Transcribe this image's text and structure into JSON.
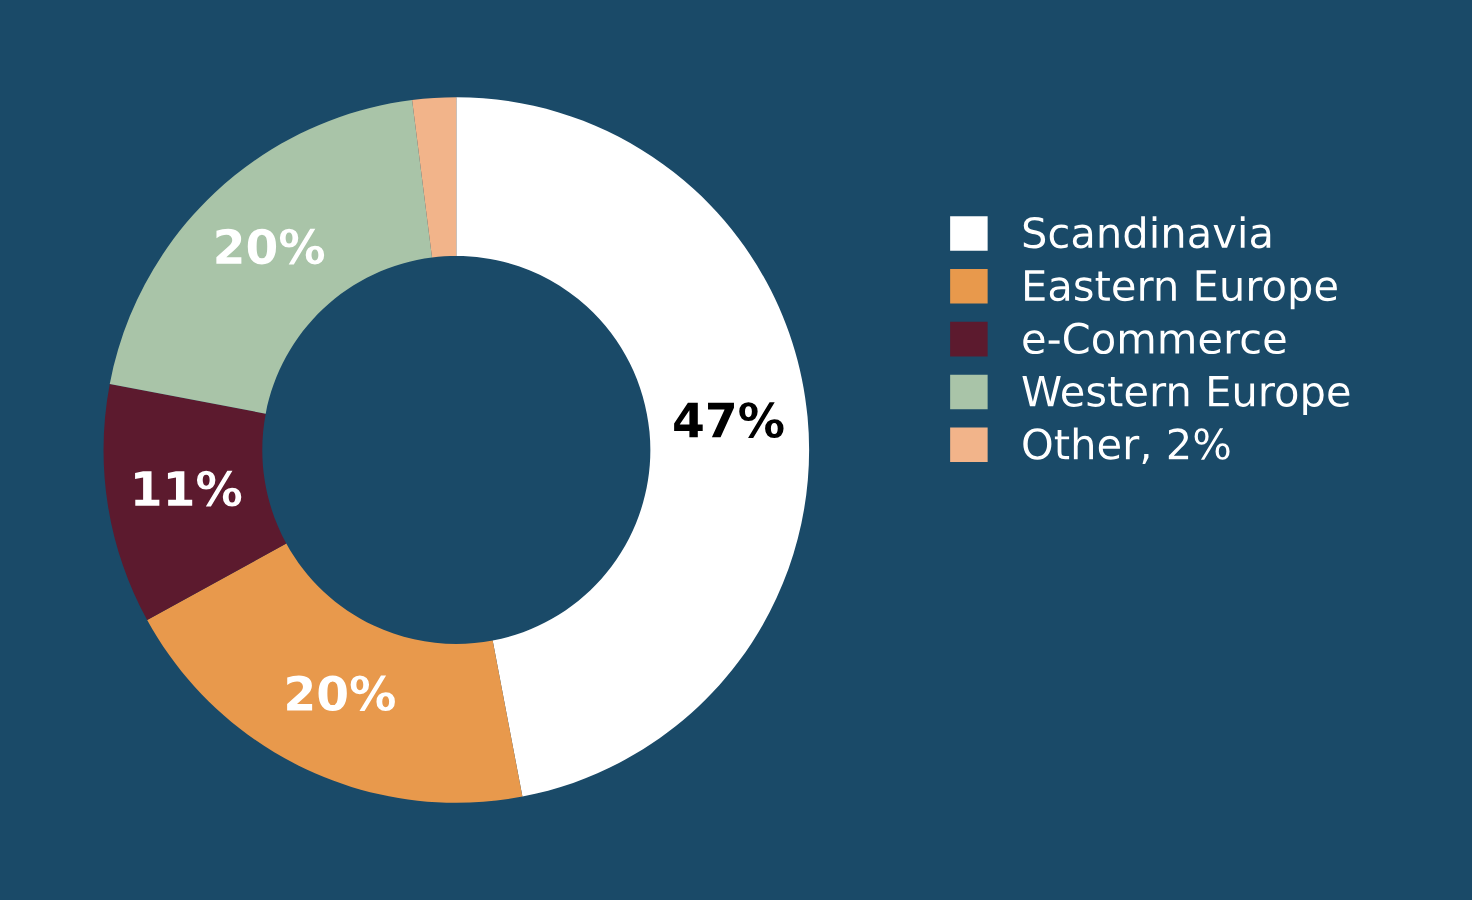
{
  "chart_data": {
    "type": "donut",
    "categories": [
      "Scandinavia",
      "Eastern Europe",
      "e-Commerce",
      "Western Europe",
      "Other, 2%"
    ],
    "values": [
      47,
      20,
      11,
      20,
      2
    ],
    "colors": [
      "#ffffff",
      "#e8994c",
      "#5c1a2e",
      "#a9c4a8",
      "#f2b48a"
    ],
    "value_labels": [
      "47%",
      "20%",
      "11%",
      "20%",
      null
    ],
    "legend": "right"
  }
}
